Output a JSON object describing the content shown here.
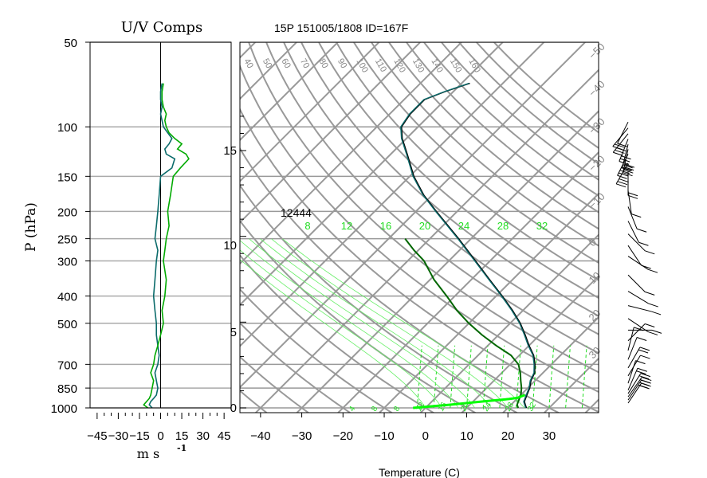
{
  "chart_data": [
    {
      "type": "line",
      "title": "U/V Comps",
      "xlabel": "m s",
      "xlabel_exponent": "-1",
      "ylabel": "P (hPa)",
      "y_scale": "log",
      "xlim": [
        -50,
        50
      ],
      "ylim_hpa": [
        1000,
        50
      ],
      "x_ticks": [
        -45,
        -30,
        -15,
        0,
        15,
        30,
        45
      ],
      "x_tick_labels": [
        "−45",
        "−30",
        "−15",
        "0",
        "15",
        "30",
        "45"
      ],
      "y_ticks": [
        1000,
        850,
        700,
        500,
        400,
        300,
        250,
        200,
        150,
        100,
        50
      ],
      "y_tick_labels": [
        "1000",
        "850",
        "700",
        "500",
        "400",
        "300",
        "250",
        "200",
        "150",
        "100",
        "50"
      ],
      "grid": "horizontal",
      "series_style": [
        {
          "color": "#0b6b6b"
        },
        {
          "color": "#00aa00"
        },
        {
          "color": "#0000aa"
        }
      ],
      "series": [
        {
          "name": "",
          "pressure": [
            1000,
            975,
            950,
            925,
            900,
            850,
            800,
            750,
            700,
            650,
            600,
            550,
            500,
            450,
            400,
            350,
            300,
            275,
            250,
            225,
            200,
            175,
            150,
            140,
            130,
            125,
            120,
            115,
            110,
            105,
            100,
            95,
            90,
            85,
            80,
            75,
            70
          ],
          "values": [
            -6,
            -8,
            -7,
            -5,
            -3,
            -2,
            -3,
            -4,
            -2,
            -1,
            -2,
            -3,
            -3,
            -4,
            -5,
            -4,
            -3,
            -2,
            -4,
            -3,
            -2,
            -1,
            0,
            8,
            10,
            4,
            3,
            6,
            8,
            5,
            2,
            1,
            0,
            1,
            0,
            0,
            1
          ]
        },
        {
          "name": "",
          "pressure": [
            1000,
            975,
            950,
            925,
            900,
            850,
            800,
            750,
            700,
            650,
            600,
            550,
            500,
            450,
            400,
            350,
            300,
            275,
            250,
            225,
            200,
            175,
            150,
            140,
            130,
            125,
            120,
            115,
            110,
            105,
            100,
            95,
            90,
            85,
            80,
            75,
            70
          ],
          "values": [
            -9,
            -12,
            -10,
            -8,
            -7,
            -6,
            -5,
            -7,
            -5,
            -4,
            -2,
            0,
            2,
            1,
            3,
            4,
            2,
            3,
            4,
            6,
            5,
            7,
            9,
            14,
            20,
            18,
            12,
            15,
            10,
            6,
            4,
            3,
            4,
            2,
            1,
            1,
            2
          ]
        }
      ]
    },
    {
      "type": "line",
      "title": "15P 151005/1808 ID=167F",
      "xlabel": "Temperature (C)",
      "y_scale": "log",
      "xlim": [
        -45,
        42
      ],
      "ylim_hpa": [
        1000,
        50
      ],
      "x_ticks": [
        -40,
        -30,
        -20,
        -10,
        0,
        10,
        20,
        30
      ],
      "x_tick_labels": [
        "−40",
        "−30",
        "−20",
        "−10",
        "0",
        "10",
        "20",
        "30"
      ],
      "height_km_ticks": [
        0,
        5,
        10,
        15
      ],
      "dry_adiabat_labels": [
        "40",
        "50",
        "60",
        "70",
        "80",
        "90",
        "100",
        "110",
        "120",
        "130",
        "140",
        "150",
        "160"
      ],
      "isotherm_labels": [
        "−50",
        "−40",
        "−30",
        "−20",
        "−10",
        "0",
        "10",
        "20",
        "30"
      ],
      "isotherm_label_values": [
        -50,
        -40,
        -30,
        -20,
        -10,
        0,
        10,
        20,
        30
      ],
      "moist_adiabat_labels": [
        "8",
        "12",
        "16",
        "20",
        "24",
        "28",
        "32"
      ],
      "moist_adiabat_values": [
        8,
        12,
        16,
        20,
        24,
        28,
        32
      ],
      "mixing_ratio_labels": [
        "4",
        "8",
        "8",
        "12",
        "16",
        "20",
        "24",
        "28",
        "32"
      ],
      "lcl_height_label": "12444",
      "series_style": [
        {
          "color": "#000000"
        },
        {
          "color": "#0b6b6b"
        },
        {
          "color": "#006600"
        },
        {
          "color": "#00ff00"
        }
      ],
      "series": [
        {
          "name": "",
          "pressure": [
            1000,
            975,
            950,
            925,
            900,
            850,
            800,
            750,
            700,
            650,
            600,
            550,
            500,
            450,
            400,
            350,
            300,
            250,
            200,
            175,
            150,
            125,
            110,
            100,
            90,
            80,
            75,
            70
          ],
          "values": [
            24.5,
            23.5,
            22.5,
            22,
            21.5,
            20.5,
            19,
            18,
            16,
            13.5,
            10,
            6.5,
            2.5,
            -2.5,
            -8.5,
            -15.5,
            -23.5,
            -33,
            -45,
            -52,
            -59,
            -66,
            -71,
            -74,
            -75,
            -75,
            -72,
            -68
          ]
        },
        {
          "name": "",
          "pressure": [
            1000,
            975,
            950,
            925,
            900,
            850,
            800,
            750,
            700,
            650,
            600,
            550,
            500,
            450,
            400,
            350,
            300,
            250,
            200,
            175,
            150,
            125,
            110,
            100,
            90,
            80,
            75,
            70
          ],
          "values": [
            24.3,
            23.3,
            22.3,
            21.8,
            21.3,
            20.3,
            18.8,
            17.8,
            15.8,
            13.3,
            9.8,
            6.3,
            2.3,
            -2.7,
            -8.7,
            -15.7,
            -23.7,
            -33.2,
            -45.2,
            -52.2,
            -59.2,
            -66.2,
            -71.2,
            -74.2,
            -75.2,
            -75.2,
            -72.2,
            -68.2
          ]
        },
        {
          "name": "",
          "pressure": [
            1000,
            975,
            950,
            925,
            900,
            850,
            800,
            750,
            700,
            650,
            600,
            550,
            500,
            450,
            400,
            350,
            300,
            275,
            250
          ],
          "values": [
            22.5,
            21.5,
            21,
            20.5,
            20,
            18.5,
            16.5,
            14.5,
            12,
            8,
            2,
            -4,
            -10,
            -16,
            -22,
            -29,
            -36,
            -41,
            -46
          ]
        },
        {
          "name": "",
          "pressure": [
            1000,
            975,
            950,
            940,
            930,
            925,
            920,
            910,
            900
          ],
          "values": [
            -3,
            5,
            12,
            15,
            18,
            19,
            20,
            20.5,
            21
          ]
        }
      ]
    }
  ],
  "wind_barbs": {
    "pressure": [
      1000,
      975,
      950,
      925,
      900,
      850,
      800,
      750,
      700,
      650,
      600,
      550,
      500,
      450,
      400,
      350,
      300,
      275,
      250,
      225,
      200,
      175,
      150,
      140,
      130,
      125,
      120,
      115,
      110,
      105,
      100
    ],
    "u": [
      -6,
      -8,
      -7,
      -5,
      -3,
      -2,
      -3,
      -4,
      -2,
      -1,
      -2,
      -3,
      -3,
      -4,
      -5,
      -4,
      -3,
      -2,
      -4,
      -3,
      -2,
      -1,
      0,
      8,
      10,
      4,
      3,
      6,
      8,
      5,
      2
    ],
    "v": [
      -9,
      -12,
      -10,
      -8,
      -7,
      -6,
      -5,
      -7,
      -5,
      -4,
      -2,
      0,
      2,
      1,
      3,
      4,
      2,
      3,
      4,
      6,
      5,
      7,
      9,
      14,
      20,
      18,
      12,
      15,
      10,
      6,
      4
    ]
  }
}
